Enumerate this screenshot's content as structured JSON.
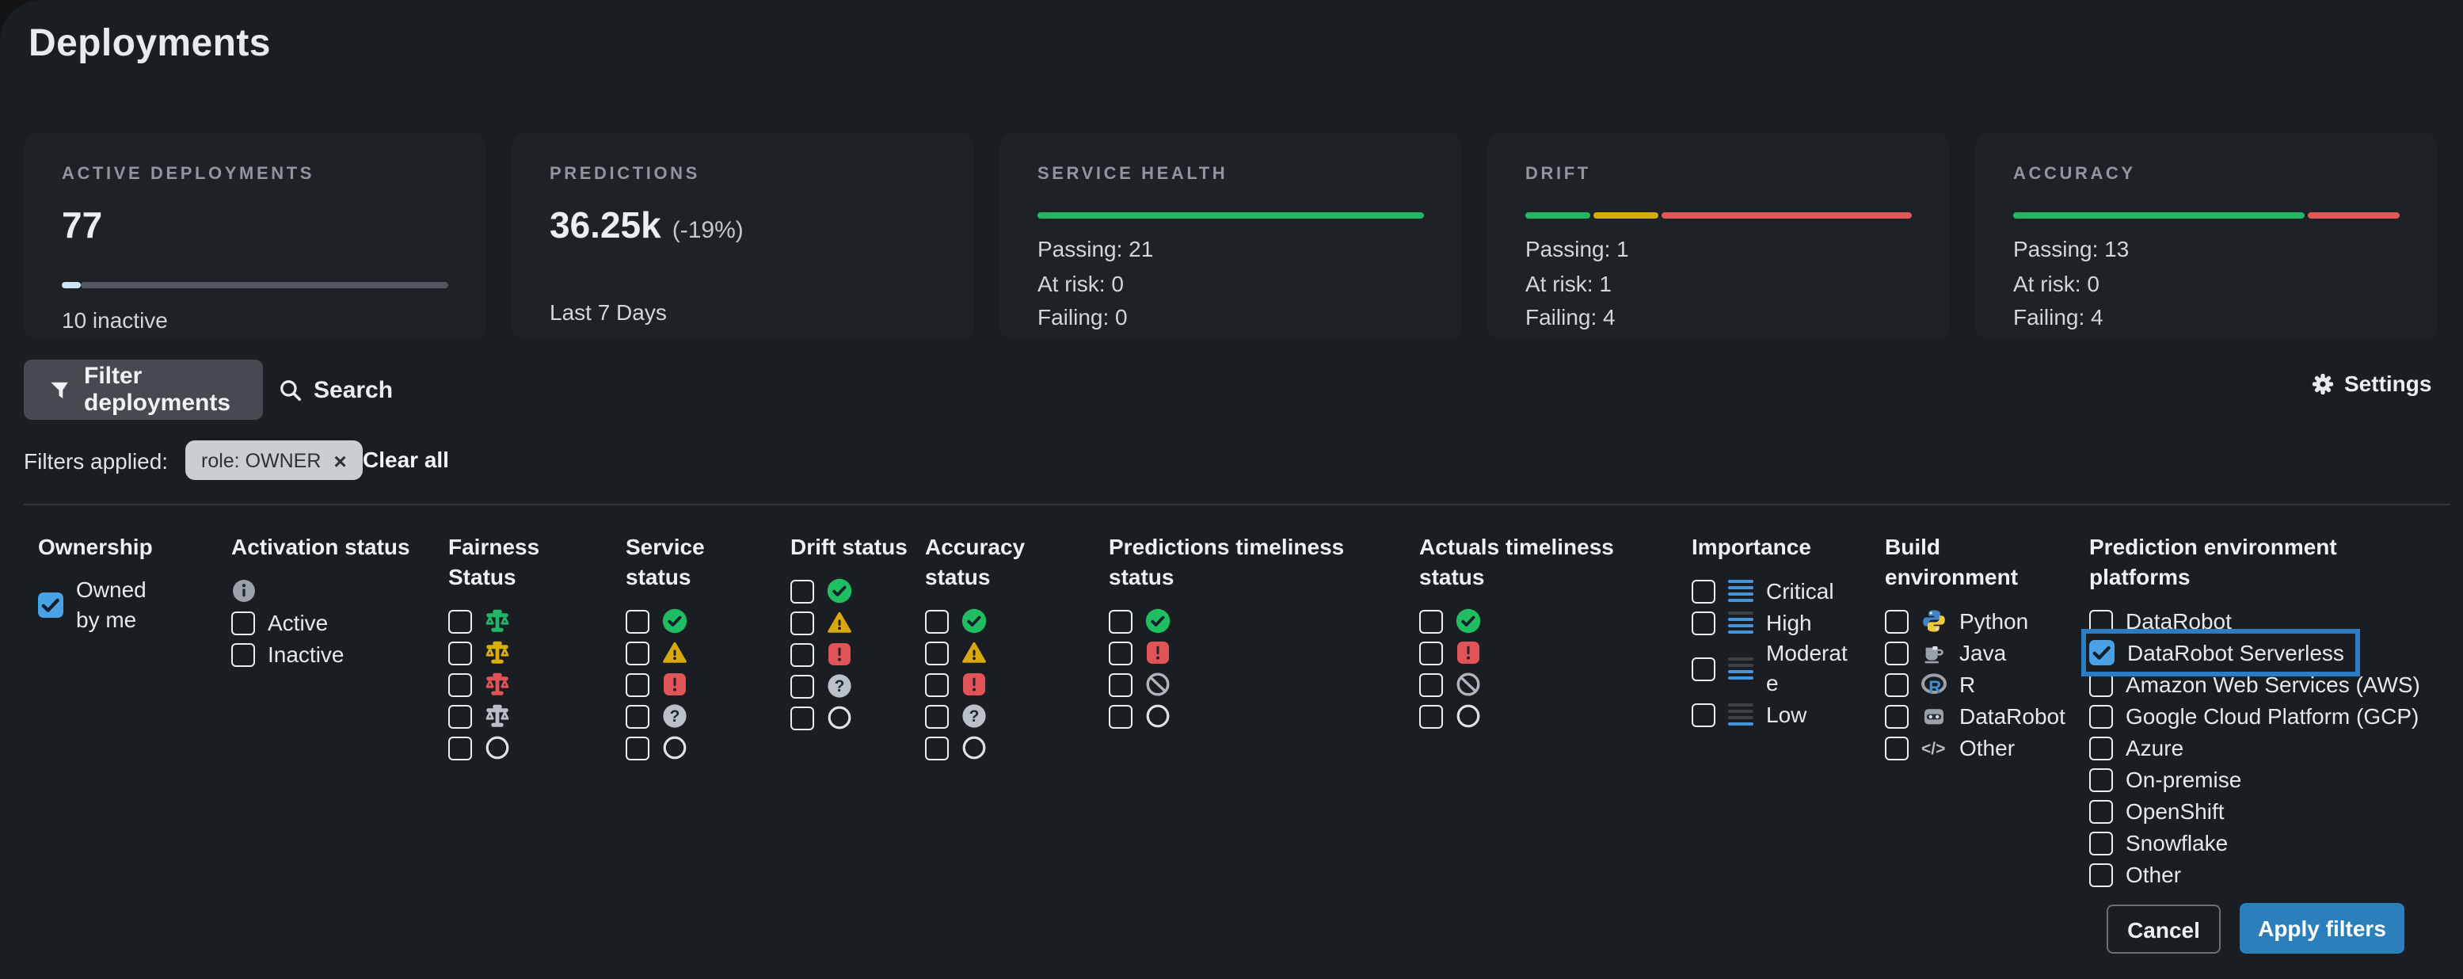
{
  "title": "Deployments",
  "cards": [
    {
      "label": "ACTIVE DEPLOYMENTS",
      "value": "77",
      "subtext": "10 inactive",
      "segments": [
        {
          "pct": 5,
          "color": "#cfe3f5"
        },
        {
          "pct": 95,
          "color": "#51575e"
        }
      ]
    },
    {
      "label": "PREDICTIONS",
      "value": "36.25k",
      "delta": "(-19%)",
      "subtext": "Last 7 Days"
    },
    {
      "label": "SERVICE HEALTH",
      "segments": [
        {
          "pct": 100,
          "color": "#23b563"
        }
      ],
      "lines": [
        "Passing: 21",
        "At risk: 0",
        "Failing: 0"
      ]
    },
    {
      "label": "DRIFT",
      "segments": [
        {
          "pct": 17,
          "color": "#23b563"
        },
        {
          "pct": 17,
          "color": "#d4ab0a"
        },
        {
          "pct": 66,
          "color": "#e25757"
        }
      ],
      "lines": [
        "Passing: 1",
        "At risk: 1",
        "Failing: 4"
      ]
    },
    {
      "label": "ACCURACY",
      "segments": [
        {
          "pct": 76,
          "color": "#23b563"
        },
        {
          "pct": 24,
          "color": "#e25757"
        }
      ],
      "lines": [
        "Passing: 13",
        "At risk: 0",
        "Failing: 4"
      ]
    }
  ],
  "toolbar": {
    "filter": "Filter deployments",
    "search": "Search",
    "settings": "Settings"
  },
  "filters_bar": {
    "label": "Filters applied:",
    "chip": "role: OWNER",
    "chip_close": "×",
    "clear": "Clear all"
  },
  "panel": {
    "columns": [
      {
        "header": "Ownership",
        "items": [
          {
            "label": "Owned by me",
            "checked": true
          }
        ]
      },
      {
        "header": "Activation status",
        "info_icon": "info-icon",
        "items": [
          {
            "label": "Active"
          },
          {
            "label": "Inactive"
          }
        ]
      },
      {
        "header": "Fairness Status",
        "items": [
          {
            "icon": "scale-green"
          },
          {
            "icon": "scale-yellow"
          },
          {
            "icon": "scale-red"
          },
          {
            "icon": "scale-gray"
          },
          {
            "icon": "circle-empty"
          }
        ]
      },
      {
        "header": "Service status",
        "items": [
          {
            "icon": "check-circle"
          },
          {
            "icon": "warning-triangle"
          },
          {
            "icon": "error-square"
          },
          {
            "icon": "question-circle"
          },
          {
            "icon": "circle-empty"
          }
        ]
      },
      {
        "header": "Drift status",
        "items": [
          {
            "icon": "check-circle"
          },
          {
            "icon": "warning-triangle"
          },
          {
            "icon": "error-square"
          },
          {
            "icon": "question-circle"
          },
          {
            "icon": "circle-empty"
          }
        ]
      },
      {
        "header": "Accuracy status",
        "items": [
          {
            "icon": "check-circle"
          },
          {
            "icon": "warning-triangle"
          },
          {
            "icon": "error-square"
          },
          {
            "icon": "question-circle"
          },
          {
            "icon": "circle-empty"
          }
        ]
      },
      {
        "header": "Predictions timeliness status",
        "items": [
          {
            "icon": "check-circle"
          },
          {
            "icon": "error-square"
          },
          {
            "icon": "prohibit-circle"
          },
          {
            "icon": "circle-empty"
          }
        ]
      },
      {
        "header": "Actuals timeliness status",
        "items": [
          {
            "icon": "check-circle"
          },
          {
            "icon": "error-square"
          },
          {
            "icon": "prohibit-circle"
          },
          {
            "icon": "circle-empty"
          }
        ]
      },
      {
        "header": "Importance",
        "items": [
          {
            "icon": "importance-critical",
            "label": "Critical"
          },
          {
            "icon": "importance-high",
            "label": "High"
          },
          {
            "icon": "importance-moderate",
            "label": "Moderate"
          },
          {
            "icon": "importance-low",
            "label": "Low"
          }
        ]
      },
      {
        "header": "Build environment",
        "items": [
          {
            "icon": "python-icon",
            "label": "Python"
          },
          {
            "icon": "java-icon",
            "label": "Java"
          },
          {
            "icon": "r-icon",
            "label": "R"
          },
          {
            "icon": "datarobot-icon",
            "label": "DataRobot"
          },
          {
            "icon": "code-icon",
            "label": "Other"
          }
        ]
      },
      {
        "header": "Prediction environment platforms",
        "items": [
          {
            "label": "DataRobot"
          },
          {
            "label": "DataRobot Serverless",
            "checked": true,
            "highlighted": true
          },
          {
            "label": "Amazon Web Services (AWS)"
          },
          {
            "label": "Google Cloud Platform (GCP)"
          },
          {
            "label": "Azure"
          },
          {
            "label": "On-premise"
          },
          {
            "label": "OpenShift"
          },
          {
            "label": "Snowflake"
          },
          {
            "label": "Other"
          }
        ]
      }
    ]
  },
  "footer": {
    "cancel": "Cancel",
    "apply": "Apply filters"
  },
  "colors": {
    "green": "#23b563",
    "yellow": "#d4ab0a",
    "red": "#e25757",
    "accent_blue": "#2b80bb",
    "checkbox_blue": "#4aa2e6",
    "highlight_ring": "#2a7dc5",
    "importance_blue": "#4596dd",
    "card_bg": "#1e2126",
    "page_bg": "#1a1d21"
  }
}
